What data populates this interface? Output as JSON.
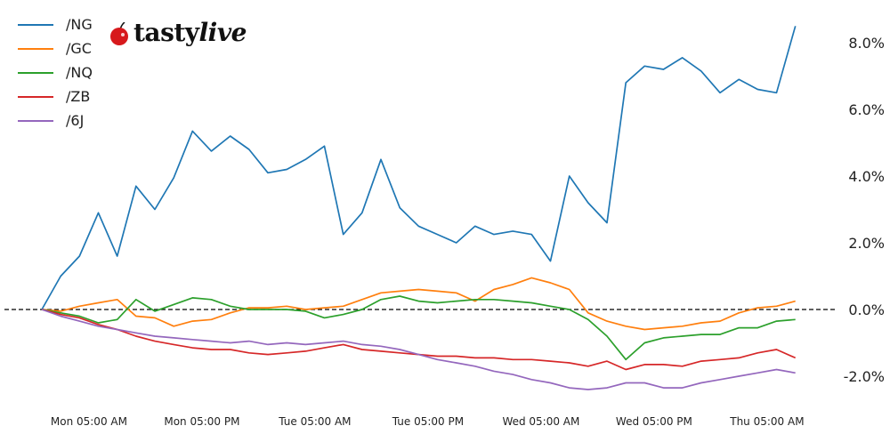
{
  "logo": {
    "text_a": "tasty",
    "text_b": "live"
  },
  "colors": {
    "/NG": "#1f77b4",
    "/GC": "#ff7f0e",
    "/NQ": "#2ca02c",
    "/ZB": "#d62728",
    "/6J": "#9467bd",
    "zero_line": "#000000",
    "logo_cherry": "#d7191c"
  },
  "chart_data": {
    "type": "line",
    "title": "",
    "xlabel": "",
    "ylabel": "",
    "ylim": [
      -2.6,
      9.0
    ],
    "y_axis_side": "right",
    "y_ticks": [
      -2.0,
      0.0,
      2.0,
      4.0,
      6.0,
      8.0
    ],
    "y_tick_labels": [
      "-2.0%",
      "0.0%",
      "2.0%",
      "4.0%",
      "6.0%",
      "8.0%"
    ],
    "x_tick_labels": [
      "Mon 05:00 AM",
      "Mon 05:00 PM",
      "Tue 05:00 AM",
      "Tue 05:00 PM",
      "Wed 05:00 AM",
      "Wed 05:00 PM",
      "Thu 05:00 AM"
    ],
    "x_ticks": [
      "Mon 05:00",
      "Mon 17:00",
      "Tue 05:00",
      "Tue 17:00",
      "Wed 05:00",
      "Wed 17:00",
      "Thu 05:00"
    ],
    "grid": false,
    "reference_line": {
      "y": 0.0,
      "style": "dashed"
    },
    "legend_position": "top-left",
    "x": [
      "Mon 00:00",
      "Mon 02:00",
      "Mon 04:00",
      "Mon 06:00",
      "Mon 08:00",
      "Mon 10:00",
      "Mon 12:00",
      "Mon 14:00",
      "Mon 16:00",
      "Mon 18:00",
      "Mon 20:00",
      "Mon 22:00",
      "Tue 00:00",
      "Tue 02:00",
      "Tue 04:00",
      "Tue 06:00",
      "Tue 08:00",
      "Tue 10:00",
      "Tue 12:00",
      "Tue 14:00",
      "Tue 16:00",
      "Tue 18:00",
      "Tue 20:00",
      "Tue 22:00",
      "Wed 00:00",
      "Wed 02:00",
      "Wed 04:00",
      "Wed 06:00",
      "Wed 08:00",
      "Wed 10:00",
      "Wed 12:00",
      "Wed 14:00",
      "Wed 16:00",
      "Wed 18:00",
      "Wed 20:00",
      "Wed 22:00",
      "Thu 00:00",
      "Thu 02:00",
      "Thu 04:00",
      "Thu 06:00",
      "Thu 08:00"
    ],
    "series": [
      {
        "name": "/NG",
        "values": [
          0,
          1.0,
          1.6,
          2.9,
          1.6,
          3.7,
          3.0,
          3.95,
          5.35,
          4.75,
          5.2,
          4.8,
          4.1,
          4.2,
          4.5,
          4.9,
          2.25,
          2.9,
          4.5,
          3.05,
          2.5,
          2.25,
          2.0,
          2.5,
          2.25,
          2.35,
          2.25,
          1.45,
          4.0,
          3.2,
          2.6,
          6.8,
          7.3,
          7.2,
          7.55,
          7.15,
          6.5,
          6.9,
          6.6,
          6.5,
          8.5
        ]
      },
      {
        "name": "/GC",
        "values": [
          0,
          -0.05,
          0.1,
          0.2,
          0.3,
          -0.2,
          -0.25,
          -0.5,
          -0.35,
          -0.3,
          -0.1,
          0.05,
          0.05,
          0.1,
          0.0,
          0.05,
          0.1,
          0.3,
          0.5,
          0.55,
          0.6,
          0.55,
          0.5,
          0.25,
          0.6,
          0.75,
          0.95,
          0.8,
          0.6,
          -0.1,
          -0.35,
          -0.5,
          -0.6,
          -0.55,
          -0.5,
          -0.4,
          -0.35,
          -0.1,
          0.05,
          0.1,
          0.25
        ]
      },
      {
        "name": "/NQ",
        "values": [
          0,
          -0.1,
          -0.2,
          -0.4,
          -0.3,
          0.3,
          -0.05,
          0.15,
          0.35,
          0.3,
          0.1,
          0.0,
          0.0,
          0.0,
          -0.05,
          -0.25,
          -0.15,
          0.0,
          0.3,
          0.4,
          0.25,
          0.2,
          0.25,
          0.3,
          0.3,
          0.25,
          0.2,
          0.1,
          0.0,
          -0.3,
          -0.8,
          -1.5,
          -1.0,
          -0.85,
          -0.8,
          -0.75,
          -0.75,
          -0.55,
          -0.55,
          -0.35,
          -0.3
        ]
      },
      {
        "name": "/ZB",
        "values": [
          0,
          -0.15,
          -0.25,
          -0.45,
          -0.6,
          -0.8,
          -0.95,
          -1.05,
          -1.15,
          -1.2,
          -1.2,
          -1.3,
          -1.35,
          -1.3,
          -1.25,
          -1.15,
          -1.05,
          -1.2,
          -1.25,
          -1.3,
          -1.35,
          -1.4,
          -1.4,
          -1.45,
          -1.45,
          -1.5,
          -1.5,
          -1.55,
          -1.6,
          -1.7,
          -1.55,
          -1.8,
          -1.65,
          -1.65,
          -1.7,
          -1.55,
          -1.5,
          -1.45,
          -1.3,
          -1.2,
          -1.45
        ]
      },
      {
        "name": "/6J",
        "values": [
          0,
          -0.2,
          -0.35,
          -0.5,
          -0.6,
          -0.7,
          -0.8,
          -0.85,
          -0.9,
          -0.95,
          -1.0,
          -0.95,
          -1.05,
          -1.0,
          -1.05,
          -1.0,
          -0.95,
          -1.05,
          -1.1,
          -1.2,
          -1.35,
          -1.5,
          -1.6,
          -1.7,
          -1.85,
          -1.95,
          -2.1,
          -2.2,
          -2.35,
          -2.4,
          -2.35,
          -2.2,
          -2.2,
          -2.35,
          -2.35,
          -2.2,
          -2.1,
          -2.0,
          -1.9,
          -1.8,
          -1.9
        ]
      }
    ]
  }
}
